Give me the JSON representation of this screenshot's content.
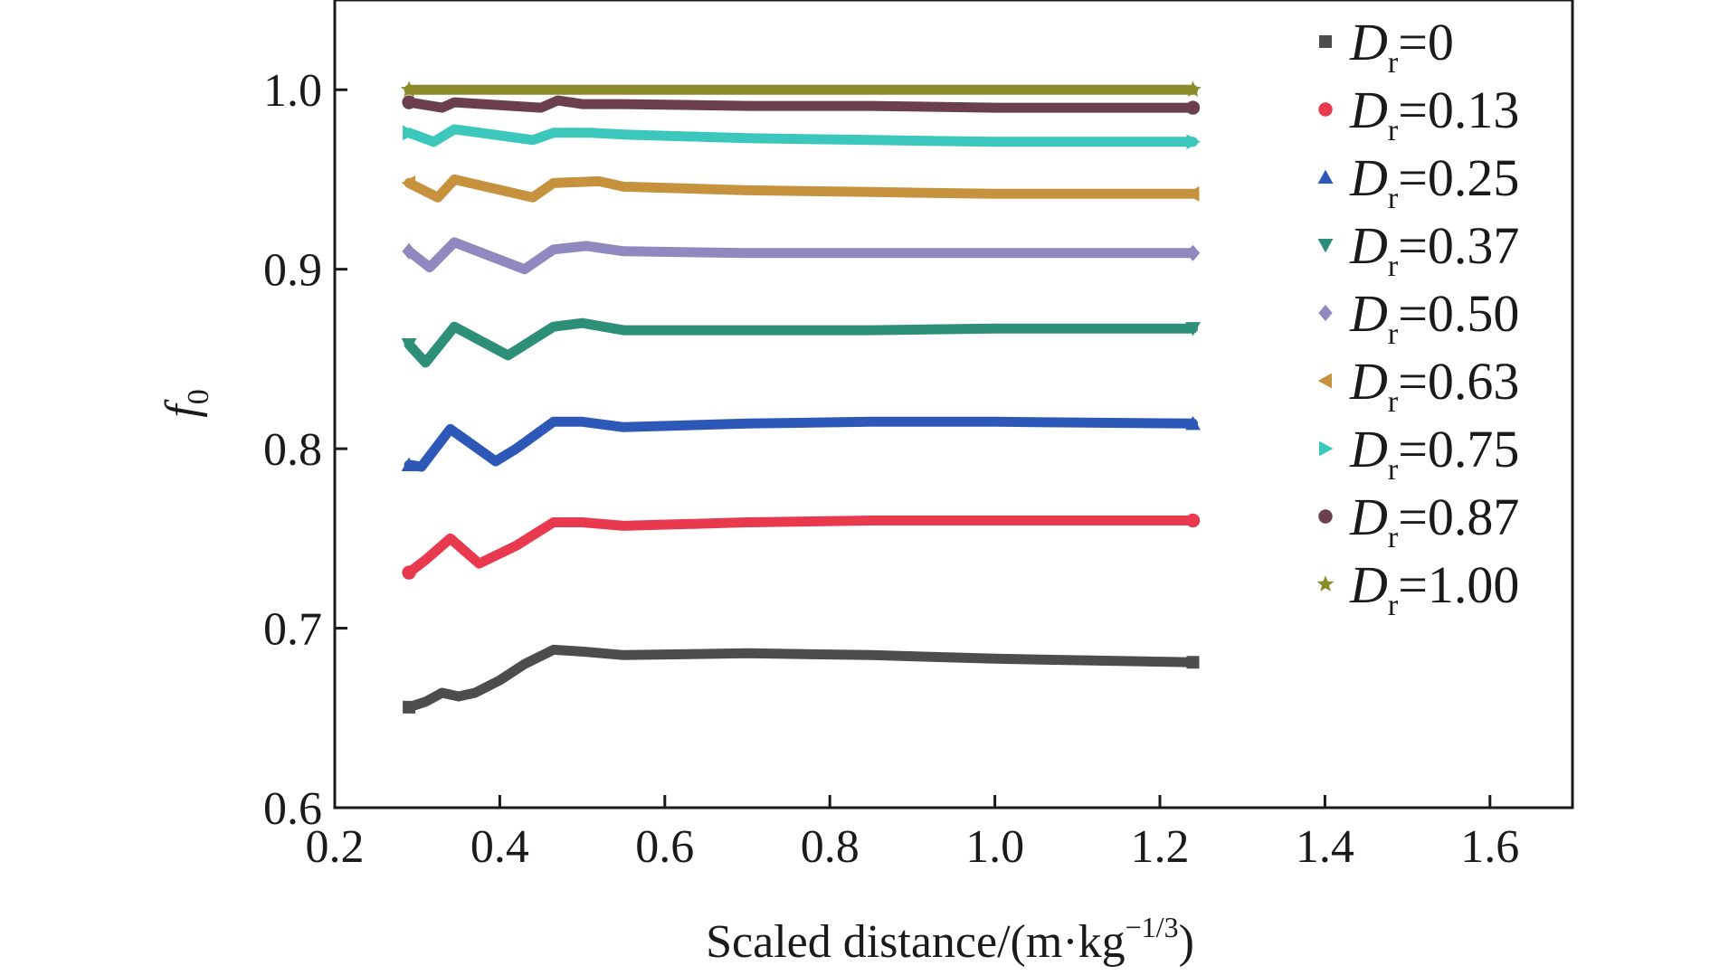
{
  "chart_data": {
    "type": "line",
    "xlabel": "Scaled distance/(m·kg",
    "xlabel_exp": "−1/3",
    "xlabel_close": ")",
    "ylabel": "f",
    "ylabel_sub": "0",
    "xlim": [
      0.2,
      1.7
    ],
    "ylim": [
      0.6,
      1.05
    ],
    "xticks": [
      0.2,
      0.4,
      0.6,
      0.8,
      1.0,
      1.2,
      1.4,
      1.6
    ],
    "xtick_labels": [
      "0.2",
      "0.4",
      "0.6",
      "0.8",
      "1.0",
      "1.2",
      "1.4",
      "1.6"
    ],
    "yticks": [
      0.6,
      0.7,
      0.8,
      0.9,
      1.0
    ],
    "ytick_labels": [
      "0.6",
      "0.7",
      "0.8",
      "0.9",
      "1.0"
    ],
    "grid": false,
    "legend_position": "right",
    "series": [
      {
        "name": "0",
        "legend_var": "D",
        "legend_sub": "r",
        "legend_prefix": "=",
        "color": "#4d4d4d",
        "marker": "square",
        "points": [
          [
            0.29,
            0.656
          ],
          [
            0.31,
            0.659
          ],
          [
            0.33,
            0.664
          ],
          [
            0.35,
            0.662
          ],
          [
            0.37,
            0.664
          ],
          [
            0.4,
            0.671
          ],
          [
            0.43,
            0.68
          ],
          [
            0.465,
            0.688
          ],
          [
            0.5,
            0.687
          ],
          [
            0.55,
            0.685
          ],
          [
            0.7,
            0.686
          ],
          [
            0.85,
            0.685
          ],
          [
            1.0,
            0.683
          ],
          [
            1.24,
            0.681
          ]
        ]
      },
      {
        "name": "0.13",
        "legend_var": "D",
        "legend_sub": "r",
        "legend_prefix": "=",
        "color": "#e8394e",
        "marker": "circle",
        "points": [
          [
            0.29,
            0.731
          ],
          [
            0.31,
            0.738
          ],
          [
            0.34,
            0.75
          ],
          [
            0.375,
            0.736
          ],
          [
            0.42,
            0.746
          ],
          [
            0.465,
            0.759
          ],
          [
            0.5,
            0.759
          ],
          [
            0.55,
            0.757
          ],
          [
            0.7,
            0.759
          ],
          [
            0.85,
            0.76
          ],
          [
            1.0,
            0.76
          ],
          [
            1.24,
            0.76
          ]
        ]
      },
      {
        "name": "0.25",
        "legend_var": "D",
        "legend_sub": "r",
        "legend_prefix": "=",
        "color": "#2e58b8",
        "marker": "triangle",
        "points": [
          [
            0.29,
            0.791
          ],
          [
            0.305,
            0.79
          ],
          [
            0.34,
            0.811
          ],
          [
            0.395,
            0.793
          ],
          [
            0.42,
            0.8
          ],
          [
            0.465,
            0.815
          ],
          [
            0.5,
            0.815
          ],
          [
            0.55,
            0.812
          ],
          [
            0.7,
            0.814
          ],
          [
            0.85,
            0.815
          ],
          [
            1.0,
            0.815
          ],
          [
            1.24,
            0.814
          ]
        ]
      },
      {
        "name": "0.37",
        "legend_var": "D",
        "legend_sub": "r",
        "legend_prefix": "=",
        "color": "#2e8f78",
        "marker": "triangle-down",
        "points": [
          [
            0.29,
            0.858
          ],
          [
            0.31,
            0.848
          ],
          [
            0.345,
            0.868
          ],
          [
            0.41,
            0.852
          ],
          [
            0.465,
            0.868
          ],
          [
            0.5,
            0.87
          ],
          [
            0.55,
            0.866
          ],
          [
            0.7,
            0.866
          ],
          [
            0.85,
            0.866
          ],
          [
            1.0,
            0.867
          ],
          [
            1.24,
            0.867
          ]
        ]
      },
      {
        "name": "0.50",
        "legend_var": "D",
        "legend_sub": "r",
        "legend_prefix": "=",
        "color": "#8f89c0",
        "marker": "diamond",
        "points": [
          [
            0.29,
            0.91
          ],
          [
            0.315,
            0.901
          ],
          [
            0.345,
            0.915
          ],
          [
            0.43,
            0.9
          ],
          [
            0.465,
            0.911
          ],
          [
            0.505,
            0.913
          ],
          [
            0.55,
            0.91
          ],
          [
            0.7,
            0.909
          ],
          [
            0.85,
            0.909
          ],
          [
            1.0,
            0.909
          ],
          [
            1.24,
            0.909
          ]
        ]
      },
      {
        "name": "0.63",
        "legend_var": "D",
        "legend_sub": "r",
        "legend_prefix": "=",
        "color": "#c7923e",
        "marker": "triangle-left",
        "points": [
          [
            0.29,
            0.948
          ],
          [
            0.325,
            0.94
          ],
          [
            0.345,
            0.95
          ],
          [
            0.44,
            0.94
          ],
          [
            0.465,
            0.948
          ],
          [
            0.52,
            0.949
          ],
          [
            0.55,
            0.946
          ],
          [
            0.7,
            0.944
          ],
          [
            0.85,
            0.943
          ],
          [
            1.0,
            0.942
          ],
          [
            1.24,
            0.942
          ]
        ]
      },
      {
        "name": "0.75",
        "legend_var": "D",
        "legend_sub": "r",
        "legend_prefix": "=",
        "color": "#3cc7bd",
        "marker": "triangle-right",
        "points": [
          [
            0.29,
            0.976
          ],
          [
            0.32,
            0.971
          ],
          [
            0.345,
            0.978
          ],
          [
            0.44,
            0.972
          ],
          [
            0.465,
            0.976
          ],
          [
            0.51,
            0.976
          ],
          [
            0.55,
            0.975
          ],
          [
            0.7,
            0.973
          ],
          [
            0.85,
            0.972
          ],
          [
            1.0,
            0.971
          ],
          [
            1.24,
            0.971
          ]
        ]
      },
      {
        "name": "0.87",
        "legend_var": "D",
        "legend_sub": "r",
        "legend_prefix": "=",
        "color": "#6b3f4d",
        "marker": "hexagon",
        "points": [
          [
            0.29,
            0.993
          ],
          [
            0.33,
            0.99
          ],
          [
            0.345,
            0.993
          ],
          [
            0.45,
            0.99
          ],
          [
            0.47,
            0.994
          ],
          [
            0.5,
            0.992
          ],
          [
            0.55,
            0.992
          ],
          [
            0.7,
            0.991
          ],
          [
            0.85,
            0.991
          ],
          [
            1.0,
            0.99
          ],
          [
            1.24,
            0.99
          ]
        ]
      },
      {
        "name": "1.00",
        "legend_var": "D",
        "legend_sub": "r",
        "legend_prefix": "=",
        "color": "#8a8a2a",
        "marker": "star",
        "points": [
          [
            0.29,
            1.0
          ],
          [
            0.5,
            1.0
          ],
          [
            0.8,
            1.0
          ],
          [
            1.0,
            1.0
          ],
          [
            1.24,
            1.0
          ]
        ]
      }
    ]
  }
}
